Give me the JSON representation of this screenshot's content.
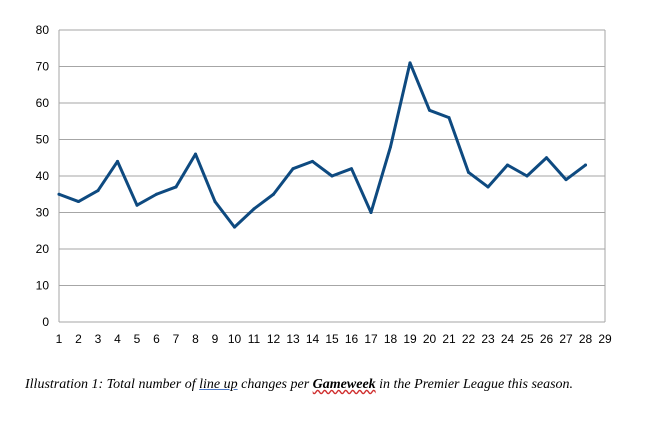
{
  "chart_data": {
    "type": "line",
    "x": [
      1,
      2,
      3,
      4,
      5,
      6,
      7,
      8,
      9,
      10,
      11,
      12,
      13,
      14,
      15,
      16,
      17,
      18,
      19,
      20,
      21,
      22,
      23,
      24,
      25,
      26,
      27,
      28
    ],
    "x_ticks": [
      "1",
      "2",
      "3",
      "4",
      "5",
      "6",
      "7",
      "8",
      "9",
      "10",
      "11",
      "12",
      "13",
      "14",
      "15",
      "16",
      "17",
      "18",
      "19",
      "20",
      "21",
      "22",
      "23",
      "24",
      "25",
      "26",
      "27",
      "28",
      "29"
    ],
    "series": [
      {
        "values": [
          35,
          33,
          36,
          44,
          32,
          35,
          37,
          46,
          33,
          26,
          31,
          35,
          42,
          44,
          40,
          42,
          30,
          48,
          71,
          58,
          56,
          41,
          37,
          43,
          40,
          45,
          39,
          43
        ]
      }
    ],
    "ylim": [
      0,
      80
    ],
    "y_ticks": [
      "0",
      "10",
      "20",
      "30",
      "40",
      "50",
      "60",
      "70",
      "80"
    ],
    "grid": true,
    "line_color": "#0e4a80",
    "grid_color": "#a6a6a6"
  },
  "caption": {
    "prefix": "Illustration 1: Total number of ",
    "underlined_1": "line up",
    "middle": " changes per ",
    "underlined_2": "Gameweek",
    "suffix": " in the Premier League this season."
  }
}
